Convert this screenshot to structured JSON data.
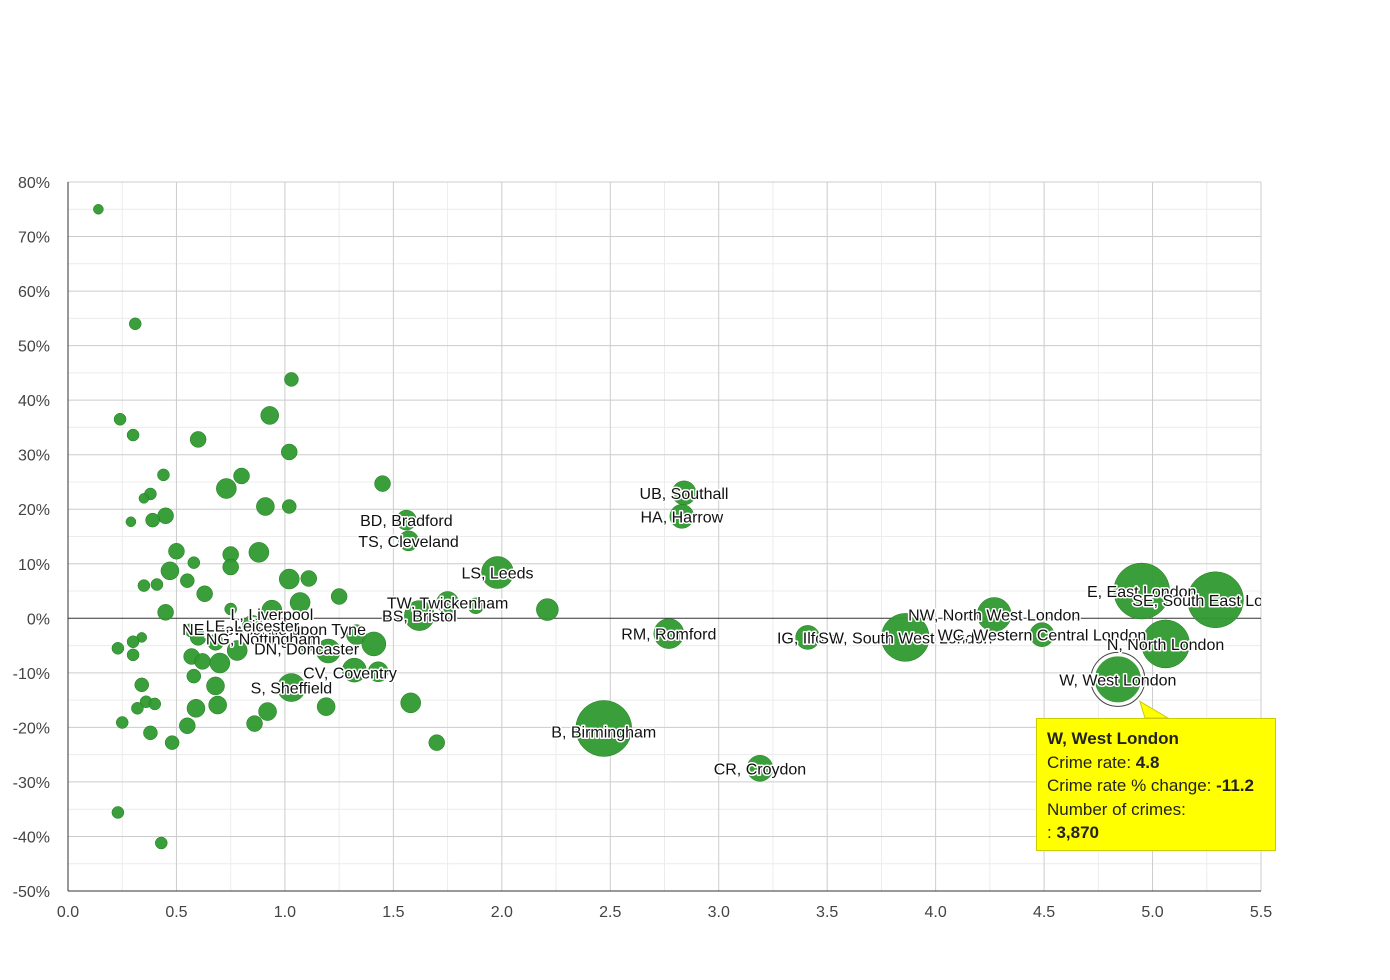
{
  "chart_data": {
    "type": "scatter",
    "bubble": true,
    "xlim": [
      0,
      5.5
    ],
    "ylim": [
      -50,
      80
    ],
    "x_ticks": [
      "0.0",
      "0.5",
      "1.0",
      "1.5",
      "2.0",
      "2.5",
      "3.0",
      "3.5",
      "4.0",
      "4.5",
      "5.0",
      "5.5"
    ],
    "y_ticks": [
      "80%",
      "70%",
      "60%",
      "50%",
      "40%",
      "30%",
      "20%",
      "10%",
      "0%",
      "-10%",
      "-20%",
      "-30%",
      "-40%",
      "-50%"
    ],
    "grid": true,
    "colors": {
      "bubble": "#2f9a2f",
      "bubble_stroke": "#1e7a1e",
      "tooltip_bg": "#ffff00"
    },
    "points": [
      {
        "x": 0.14,
        "y": 75,
        "r": 5
      },
      {
        "x": 0.31,
        "y": 54,
        "r": 6
      },
      {
        "x": 1.03,
        "y": 43.8,
        "r": 7
      },
      {
        "x": 0.24,
        "y": 36.5,
        "r": 6
      },
      {
        "x": 0.93,
        "y": 37.2,
        "r": 9
      },
      {
        "x": 0.3,
        "y": 33.6,
        "r": 6
      },
      {
        "x": 0.6,
        "y": 32.8,
        "r": 8
      },
      {
        "x": 1.02,
        "y": 30.5,
        "r": 8
      },
      {
        "x": 0.44,
        "y": 26.3,
        "r": 6
      },
      {
        "x": 0.8,
        "y": 26.1,
        "r": 8
      },
      {
        "x": 0.73,
        "y": 23.8,
        "r": 10
      },
      {
        "x": 0.38,
        "y": 22.8,
        "r": 6
      },
      {
        "x": 0.35,
        "y": 22,
        "r": 5
      },
      {
        "x": 1.45,
        "y": 24.7,
        "r": 8
      },
      {
        "x": 0.91,
        "y": 20.5,
        "r": 9
      },
      {
        "x": 1.02,
        "y": 20.5,
        "r": 7
      },
      {
        "x": 0.45,
        "y": 18.8,
        "r": 8
      },
      {
        "x": 0.39,
        "y": 18,
        "r": 7
      },
      {
        "x": 0.29,
        "y": 17.7,
        "r": 5
      },
      {
        "x": 1.56,
        "y": 18,
        "r": 10
      },
      {
        "x": 1.57,
        "y": 14.2,
        "r": 10
      },
      {
        "x": 0.5,
        "y": 12.3,
        "r": 8
      },
      {
        "x": 0.75,
        "y": 11.7,
        "r": 8
      },
      {
        "x": 0.88,
        "y": 12.1,
        "r": 10
      },
      {
        "x": 0.58,
        "y": 10.2,
        "r": 6
      },
      {
        "x": 0.75,
        "y": 9.4,
        "r": 8
      },
      {
        "x": 0.47,
        "y": 8.7,
        "r": 9
      },
      {
        "x": 1.98,
        "y": 8.4,
        "r": 16
      },
      {
        "x": 1.02,
        "y": 7.2,
        "r": 10
      },
      {
        "x": 1.11,
        "y": 7.3,
        "r": 8
      },
      {
        "x": 0.55,
        "y": 6.9,
        "r": 7
      },
      {
        "x": 0.41,
        "y": 6.2,
        "r": 6
      },
      {
        "x": 0.35,
        "y": 6,
        "r": 6
      },
      {
        "x": 0.63,
        "y": 4.5,
        "r": 8
      },
      {
        "x": 1.25,
        "y": 4,
        "r": 8
      },
      {
        "x": 1.07,
        "y": 2.9,
        "r": 10
      },
      {
        "x": 0.94,
        "y": 1.5,
        "r": 10
      },
      {
        "x": 0.45,
        "y": 1.1,
        "r": 8
      },
      {
        "x": 0.75,
        "y": 1.7,
        "r": 6
      },
      {
        "x": 2.21,
        "y": 1.6,
        "r": 11
      },
      {
        "x": 1.75,
        "y": 2.9,
        "r": 11
      },
      {
        "x": 1.88,
        "y": 2.3,
        "r": 8
      },
      {
        "x": 1.62,
        "y": 0.5,
        "r": 15
      },
      {
        "x": 0.85,
        "y": -1.3,
        "r": 10
      },
      {
        "x": 0.9,
        "y": -2.5,
        "r": 8
      },
      {
        "x": 0.57,
        "y": -2.2,
        "r": 7
      },
      {
        "x": 0.6,
        "y": -3.5,
        "r": 8
      },
      {
        "x": 1.33,
        "y": -3,
        "r": 10
      },
      {
        "x": 1.1,
        "y": -4.5,
        "r": 9
      },
      {
        "x": 1.41,
        "y": -4.7,
        "r": 12
      },
      {
        "x": 0.34,
        "y": -3.5,
        "r": 5
      },
      {
        "x": 0.3,
        "y": -4.3,
        "r": 6
      },
      {
        "x": 0.23,
        "y": -5.5,
        "r": 6
      },
      {
        "x": 0.3,
        "y": -6.7,
        "r": 6
      },
      {
        "x": 0.78,
        "y": -5.9,
        "r": 10
      },
      {
        "x": 0.68,
        "y": -4.4,
        "r": 8
      },
      {
        "x": 1.2,
        "y": -6,
        "r": 12
      },
      {
        "x": 0.57,
        "y": -7,
        "r": 8
      },
      {
        "x": 0.62,
        "y": -7.9,
        "r": 8
      },
      {
        "x": 0.7,
        "y": -8.2,
        "r": 10
      },
      {
        "x": 1.32,
        "y": -9.5,
        "r": 12
      },
      {
        "x": 1.43,
        "y": -9.8,
        "r": 10
      },
      {
        "x": 0.58,
        "y": -10.6,
        "r": 7
      },
      {
        "x": 0.34,
        "y": -12.2,
        "r": 7
      },
      {
        "x": 0.68,
        "y": -12.4,
        "r": 9
      },
      {
        "x": 1.03,
        "y": -12.7,
        "r": 14
      },
      {
        "x": 0.36,
        "y": -15.3,
        "r": 6
      },
      {
        "x": 0.4,
        "y": -15.7,
        "r": 6
      },
      {
        "x": 0.32,
        "y": -16.5,
        "r": 6
      },
      {
        "x": 0.59,
        "y": -16.5,
        "r": 9
      },
      {
        "x": 0.69,
        "y": -15.9,
        "r": 9
      },
      {
        "x": 0.92,
        "y": -17.1,
        "r": 9
      },
      {
        "x": 1.19,
        "y": -16.2,
        "r": 9
      },
      {
        "x": 1.58,
        "y": -15.5,
        "r": 10
      },
      {
        "x": 0.25,
        "y": -19.1,
        "r": 6
      },
      {
        "x": 0.55,
        "y": -19.7,
        "r": 8
      },
      {
        "x": 0.86,
        "y": -19.3,
        "r": 8
      },
      {
        "x": 0.38,
        "y": -21,
        "r": 7
      },
      {
        "x": 0.48,
        "y": -22.8,
        "r": 7
      },
      {
        "x": 1.7,
        "y": -22.8,
        "r": 8
      },
      {
        "x": 2.47,
        "y": -20.2,
        "r": 28
      },
      {
        "x": 0.23,
        "y": -35.6,
        "r": 6
      },
      {
        "x": 0.43,
        "y": -41.2,
        "r": 6
      },
      {
        "x": 2.84,
        "y": 23,
        "r": 12
      },
      {
        "x": 2.83,
        "y": 18.7,
        "r": 12
      },
      {
        "x": 2.77,
        "y": -2.8,
        "r": 15
      },
      {
        "x": 3.19,
        "y": -27.5,
        "r": 13
      },
      {
        "x": 3.41,
        "y": -3.5,
        "r": 12
      },
      {
        "x": 3.86,
        "y": -3.5,
        "r": 24
      },
      {
        "x": 4.27,
        "y": 0.7,
        "r": 17
      },
      {
        "x": 4.49,
        "y": -3,
        "r": 12
      },
      {
        "x": 4.95,
        "y": 5,
        "r": 28
      },
      {
        "x": 5.29,
        "y": 3.4,
        "r": 28
      },
      {
        "x": 5.06,
        "y": -4.7,
        "r": 24
      },
      {
        "x": 4.84,
        "y": -11.2,
        "r": 24
      }
    ],
    "labels": [
      {
        "text": "UB, Southall",
        "x": 2.84,
        "y": 23
      },
      {
        "text": "HA, Harrow",
        "x": 2.83,
        "y": 18.7
      },
      {
        "text": "BD, Bradford",
        "x": 1.56,
        "y": 18
      },
      {
        "text": "TS, Cleveland",
        "x": 1.57,
        "y": 14.2
      },
      {
        "text": "LS, Leeds",
        "x": 1.98,
        "y": 8.4
      },
      {
        "text": "TW, Twickenham",
        "x": 1.75,
        "y": 2.9
      },
      {
        "text": "BS, Bristol",
        "x": 1.62,
        "y": 0.5
      },
      {
        "text": "L, Liverpool",
        "x": 0.94,
        "y": 0.8
      },
      {
        "text": "NE, Newcastle upon Tyne",
        "x": 0.95,
        "y": -2
      },
      {
        "text": "LE, Leicester",
        "x": 0.85,
        "y": -1.3
      },
      {
        "text": "NG, Nottingham",
        "x": 0.9,
        "y": -3.7
      },
      {
        "text": "DN, Doncaster",
        "x": 1.1,
        "y": -5.5
      },
      {
        "text": "CV, Coventry",
        "x": 1.3,
        "y": -9.9
      },
      {
        "text": "S, Sheffield",
        "x": 1.03,
        "y": -12.7
      },
      {
        "text": "B, Birmingham",
        "x": 2.47,
        "y": -20.8
      },
      {
        "text": "RM, Romford",
        "x": 2.77,
        "y": -2.8
      },
      {
        "text": "CR, Croydon",
        "x": 3.19,
        "y": -27.5
      },
      {
        "text": "IG, Ilford",
        "x": 3.41,
        "y": -3.5
      },
      {
        "text": "SW, South West London",
        "x": 3.86,
        "y": -3.5
      },
      {
        "text": "NW, North West London",
        "x": 4.27,
        "y": 0.7
      },
      {
        "text": "WC, Western Central London",
        "x": 4.49,
        "y": -3
      },
      {
        "text": "E, East London",
        "x": 4.95,
        "y": 5
      },
      {
        "text": "SE, South East London",
        "x": 5.29,
        "y": 3.4
      },
      {
        "text": "N, North London",
        "x": 5.06,
        "y": -4.7
      },
      {
        "text": "W, West London",
        "x": 4.84,
        "y": -11.2
      }
    ],
    "highlight": {
      "x": 4.84,
      "y": -11.2
    }
  },
  "tooltip": {
    "title": "W, West London",
    "crime_rate_label": "Crime rate: ",
    "crime_rate_value": "4.8",
    "change_label": "Crime rate % change: ",
    "change_value": "-11.2",
    "count_label": "Number of crimes:",
    "count_prefix": ": ",
    "count_value": "3,870"
  }
}
